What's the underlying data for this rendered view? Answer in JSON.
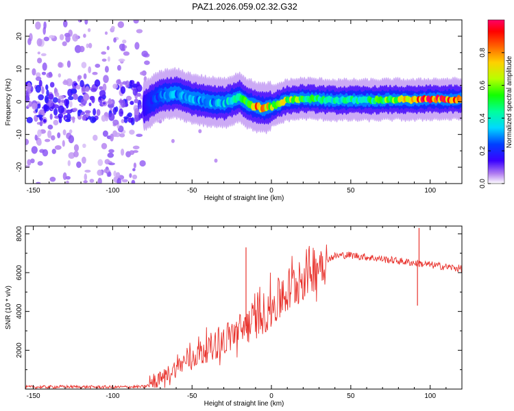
{
  "title": "PAZ1.2026.059.02.32.G32",
  "chart_data": [
    {
      "type": "heatmap",
      "name": "spectrogram",
      "xlabel": "Height of straight line (km)",
      "ylabel": "Frequency (Hz)",
      "xlim": [
        -155,
        120
      ],
      "ylim": [
        -25,
        25
      ],
      "xticks": [
        -150,
        -100,
        -50,
        0,
        50,
        100
      ],
      "yticks": [
        -20,
        -10,
        0,
        10,
        20
      ],
      "colorbar": {
        "label": "Normalized spectral amplitude",
        "range": [
          0,
          1
        ],
        "ticks": [
          0.0,
          0.2,
          0.4,
          0.6,
          0.8
        ],
        "tick_labels": [
          "0.0",
          "0.2",
          "0.4",
          "0.6",
          "0.8"
        ]
      },
      "ridge": {
        "description_points_x": [
          -80,
          -70,
          -60,
          -50,
          -40,
          -30,
          -20,
          -15,
          -10,
          -5,
          0,
          10,
          20,
          40,
          60,
          80,
          90,
          100,
          120
        ],
        "frequency_hz": [
          -1.5,
          2,
          2.5,
          1,
          0,
          -0.5,
          1.5,
          -0.5,
          -1.5,
          -2,
          -1.5,
          0.5,
          1,
          0.5,
          0.5,
          0.7,
          0.5,
          0.8,
          0.8
        ],
        "amplitude": [
          0.15,
          0.25,
          0.3,
          0.3,
          0.3,
          0.35,
          0.4,
          0.55,
          0.8,
          0.85,
          0.6,
          0.65,
          0.5,
          0.4,
          0.45,
          0.6,
          0.85,
          0.9,
          0.85
        ]
      },
      "noise_region_x": [
        -155,
        -80
      ]
    },
    {
      "type": "line",
      "name": "snr",
      "xlabel": "Height of straight line (km)",
      "ylabel": "SNR (10 * v/v)",
      "xlim": [
        -155,
        120
      ],
      "ylim": [
        0,
        8400
      ],
      "xticks": [
        -150,
        -100,
        -50,
        0,
        50,
        100
      ],
      "yticks": [
        2000,
        4000,
        6000,
        8000
      ],
      "color": "#e8302a",
      "series": [
        {
          "name": "SNR",
          "x": [
            -155,
            -130,
            -100,
            -80,
            -75,
            -70,
            -65,
            -60,
            -55,
            -50,
            -45,
            -40,
            -35,
            -30,
            -25,
            -20,
            -15,
            -10,
            -5,
            0,
            5,
            10,
            15,
            20,
            25,
            30,
            35,
            40,
            45,
            50,
            55,
            60,
            65,
            70,
            75,
            80,
            85,
            90,
            95,
            100,
            105,
            110,
            115,
            120
          ],
          "y": [
            100,
            120,
            100,
            120,
            300,
            500,
            800,
            1100,
            1400,
            1600,
            1900,
            2100,
            2300,
            2500,
            2800,
            3000,
            3300,
            3600,
            3900,
            4200,
            4600,
            5000,
            5400,
            5800,
            6200,
            6500,
            6700,
            6850,
            6900,
            6900,
            6850,
            6800,
            6750,
            6700,
            6650,
            6600,
            6550,
            6500,
            6450,
            6400,
            6350,
            6300,
            6250,
            6200
          ]
        }
      ],
      "spikes": [
        {
          "x": -16,
          "y": 7300
        },
        {
          "x": 93,
          "y": 8300
        },
        {
          "x": 92,
          "y": 4300
        }
      ]
    }
  ]
}
